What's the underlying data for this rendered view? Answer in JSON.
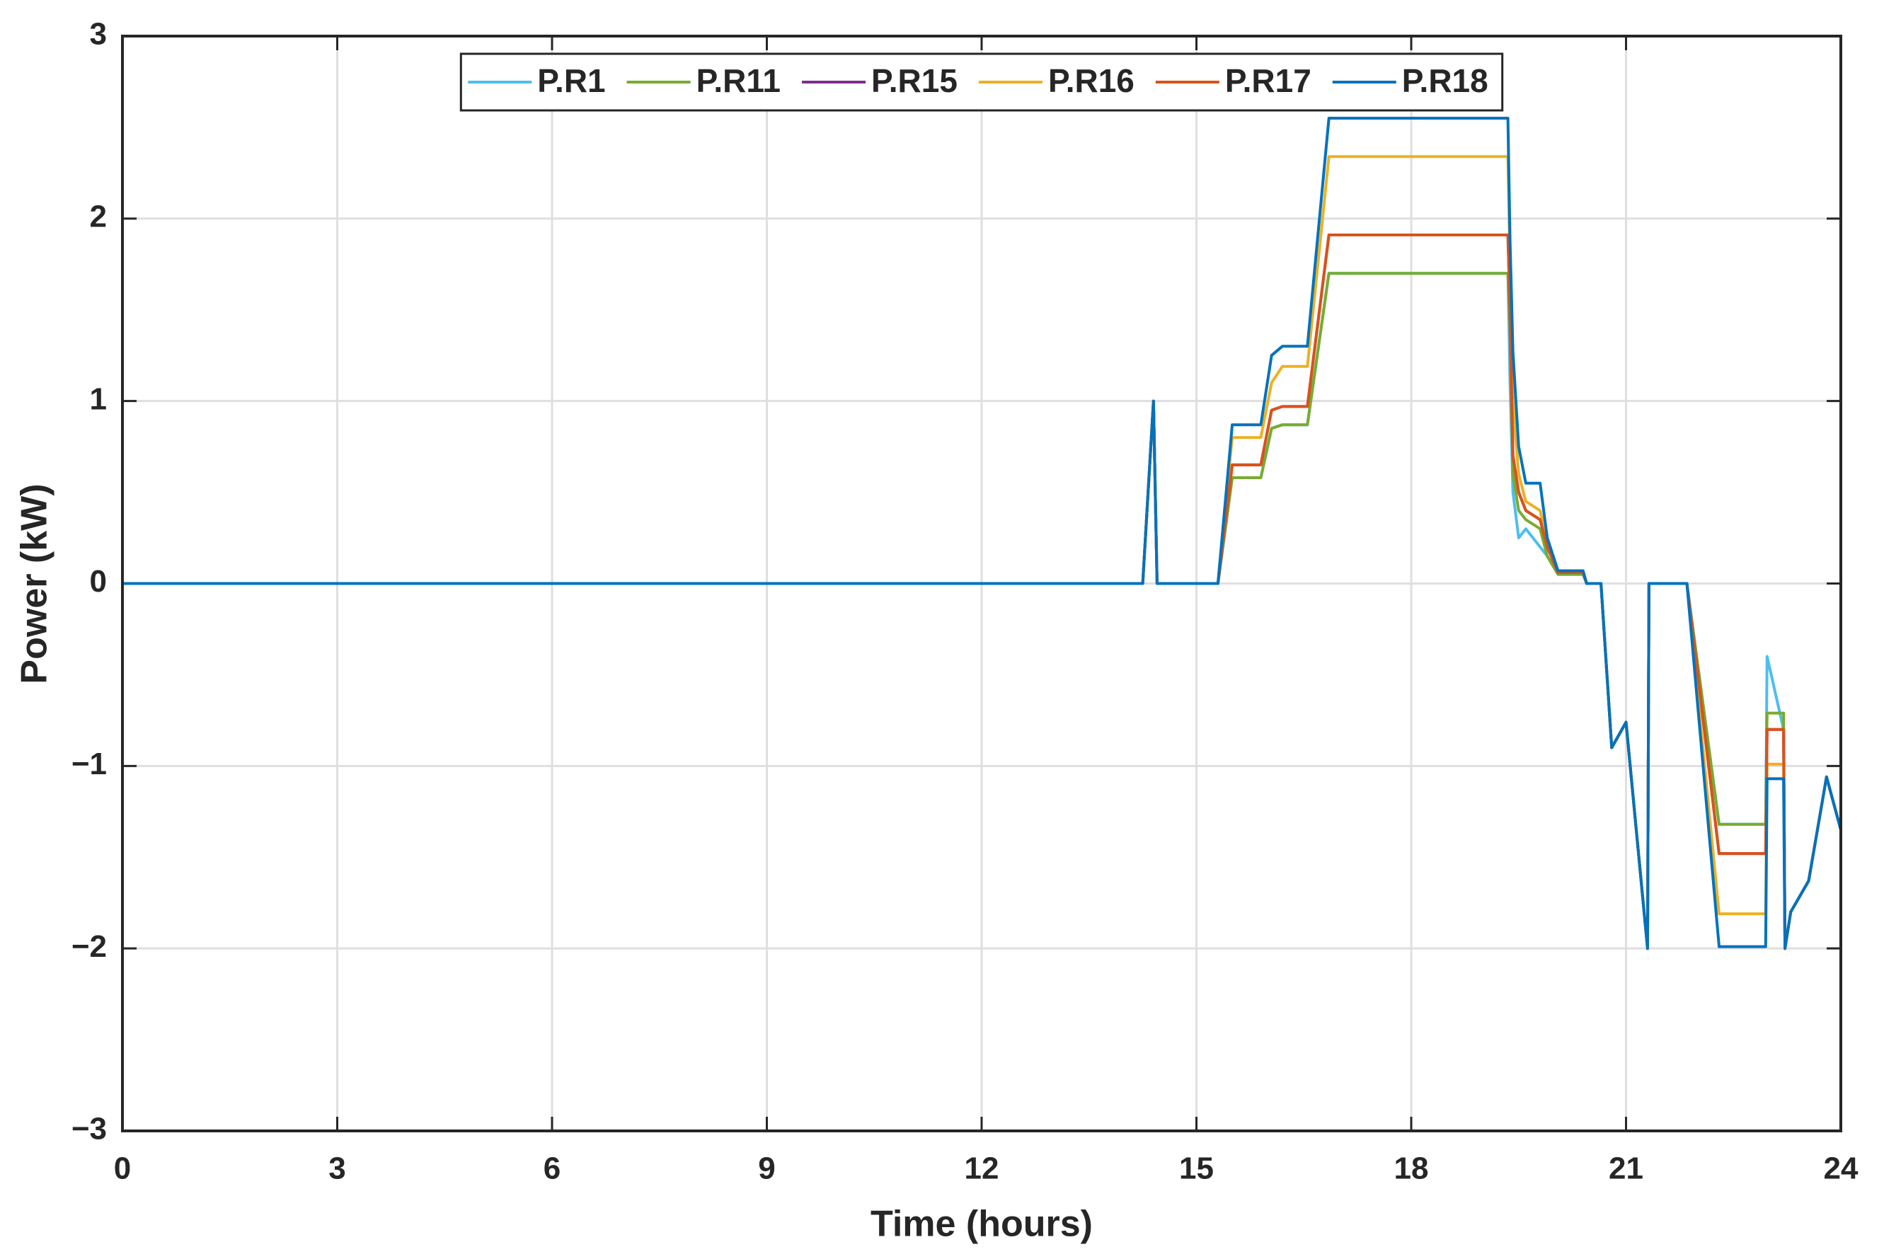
{
  "chart_data": {
    "type": "line",
    "xlabel": "Time (hours)",
    "ylabel": "Power (kW)",
    "x": [
      0,
      14.25,
      14.4,
      14.45,
      15.3,
      15.5,
      15.9,
      16.05,
      16.2,
      16.55,
      16.85,
      19.35,
      19.38,
      19.42,
      19.5,
      19.6,
      19.8,
      19.9,
      20.05,
      20.4,
      20.45,
      20.65,
      20.8,
      21.0,
      21.3,
      21.32,
      21.85,
      22.3,
      22.95,
      22.97,
      23.2,
      23.22,
      23.3,
      23.55,
      23.8,
      24
    ],
    "series": [
      {
        "name": "P.R1",
        "color": "#4DBEEE",
        "values": [
          0,
          0,
          1,
          0,
          0,
          0.58,
          0.58,
          0.85,
          0.87,
          0.87,
          1.7,
          1.7,
          1.1,
          0.5,
          0.25,
          0.3,
          0.2,
          0.15,
          0.05,
          0.05,
          0,
          0,
          -0.9,
          -0.76,
          -2,
          0,
          0,
          -1.32,
          -1.32,
          -0.4,
          -0.8,
          -2,
          -1.8,
          -1.63,
          -1.06,
          -1.35
        ]
      },
      {
        "name": "P.R11",
        "color": "#77AC30",
        "values": [
          0,
          0,
          1,
          0,
          0,
          0.58,
          0.58,
          0.85,
          0.87,
          0.87,
          1.7,
          1.7,
          1.4,
          0.6,
          0.4,
          0.35,
          0.3,
          0.15,
          0.05,
          0.05,
          0,
          0,
          -0.9,
          -0.76,
          -2,
          0,
          0,
          -1.32,
          -1.32,
          -0.71,
          -0.71,
          -2,
          -1.8,
          -1.63,
          -1.06,
          -1.35
        ]
      },
      {
        "name": "P.R15",
        "color": "#7E2F8E",
        "values": [
          0,
          0,
          1,
          0,
          0,
          0.65,
          0.65,
          0.95,
          0.97,
          0.97,
          1.91,
          1.91,
          1.5,
          0.7,
          0.5,
          0.4,
          0.35,
          0.2,
          0.06,
          0.06,
          0,
          0,
          -0.9,
          -0.76,
          -2,
          0,
          0,
          -1.48,
          -1.48,
          -0.8,
          -0.8,
          -2,
          -1.8,
          -1.63,
          -1.06,
          -1.35
        ]
      },
      {
        "name": "P.R16",
        "color": "#EDB120",
        "values": [
          0,
          0,
          1,
          0,
          0,
          0.8,
          0.8,
          1.1,
          1.19,
          1.19,
          2.34,
          2.34,
          1.7,
          1.0,
          0.6,
          0.45,
          0.4,
          0.22,
          0.06,
          0.06,
          0,
          0,
          -0.9,
          -0.76,
          -2,
          0,
          0,
          -1.81,
          -1.81,
          -0.99,
          -0.99,
          -2,
          -1.8,
          -1.63,
          -1.06,
          -1.35
        ]
      },
      {
        "name": "P.R17",
        "color": "#D95319",
        "values": [
          0,
          0,
          1,
          0,
          0,
          0.65,
          0.65,
          0.95,
          0.97,
          0.97,
          1.91,
          1.91,
          1.5,
          0.7,
          0.5,
          0.4,
          0.35,
          0.2,
          0.06,
          0.06,
          0,
          0,
          -0.9,
          -0.76,
          -2,
          0,
          0,
          -1.48,
          -1.48,
          -0.8,
          -0.8,
          -2,
          -1.8,
          -1.63,
          -1.06,
          -1.35
        ]
      },
      {
        "name": "P.R18",
        "color": "#0072BD",
        "values": [
          0,
          0,
          1,
          0,
          0,
          0.87,
          0.87,
          1.25,
          1.3,
          1.3,
          2.55,
          2.55,
          1.88,
          1.27,
          0.75,
          0.55,
          0.55,
          0.25,
          0.07,
          0.07,
          0,
          0,
          -0.9,
          -0.76,
          -2,
          0,
          0,
          -1.99,
          -1.99,
          -1.07,
          -1.07,
          -2,
          -1.8,
          -1.63,
          -1.06,
          -1.35
        ]
      }
    ],
    "xlim": [
      0,
      24
    ],
    "xticks": [
      0,
      3,
      6,
      9,
      12,
      15,
      18,
      21,
      24
    ],
    "ylim": [
      -3,
      3
    ],
    "yticks": [
      {
        "value": -3,
        "label": "−3"
      },
      {
        "value": -2,
        "label": "−2"
      },
      {
        "value": -1,
        "label": "−1"
      },
      0,
      1,
      2,
      3
    ],
    "grid": true,
    "legend": "top"
  }
}
